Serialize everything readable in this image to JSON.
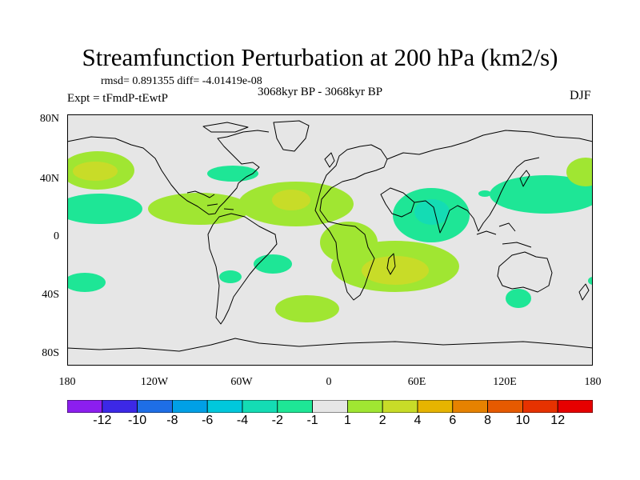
{
  "title": "Streamfunction Perturbation at 200 hPa (km2/s)",
  "stats_text": "rmsd= 0.891355 diff= -4.01419e-08",
  "period": "3068kyr BP - 3068kyr BP",
  "experiment": "Expt = tFmdP-tEwtP",
  "season": "DJF",
  "lat_labels": [
    "80N",
    "40N",
    "0",
    "40S",
    "80S"
  ],
  "lon_labels": [
    "180",
    "120W",
    "60W",
    "0",
    "60E",
    "120E",
    "180"
  ],
  "colorbar": {
    "labels": [
      "-12",
      "-10",
      "-8",
      "-6",
      "-4",
      "-2",
      "-1",
      "1",
      "2",
      "4",
      "6",
      "8",
      "10",
      "12"
    ],
    "colors": [
      "#8c1eef",
      "#3c28e6",
      "#1e6ee6",
      "#00a0e6",
      "#00c8dc",
      "#14dcb4",
      "#1ee696",
      "#e6e6e6",
      "#a0e632",
      "#c8dc28",
      "#e6b400",
      "#e68200",
      "#e65a00",
      "#e63200",
      "#e60000"
    ]
  },
  "map": {
    "background": "#e6e6e6",
    "coastline_color": "#000000"
  }
}
